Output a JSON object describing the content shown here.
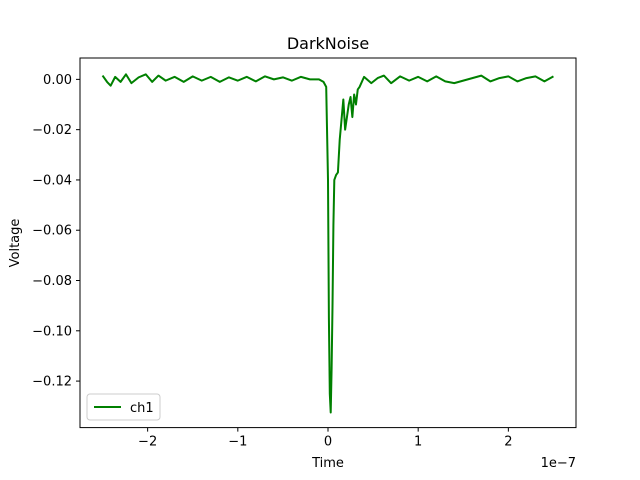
{
  "chart_data": {
    "type": "line",
    "title": "DarkNoise",
    "xlabel": "Time",
    "ylabel": "Voltage",
    "x_offset_label": "1e−7",
    "xlim": [
      -2.75,
      2.75
    ],
    "ylim": [
      -0.1385,
      0.0085
    ],
    "x_ticks": [
      {
        "value": -2,
        "label": "−2"
      },
      {
        "value": -1,
        "label": "−1"
      },
      {
        "value": 0,
        "label": "0"
      },
      {
        "value": 1,
        "label": "1"
      },
      {
        "value": 2,
        "label": "2"
      }
    ],
    "y_ticks": [
      {
        "value": 0.0,
        "label": "0.00"
      },
      {
        "value": -0.02,
        "label": "−0.02"
      },
      {
        "value": -0.04,
        "label": "−0.04"
      },
      {
        "value": -0.06,
        "label": "−0.06"
      },
      {
        "value": -0.08,
        "label": "−0.08"
      },
      {
        "value": -0.1,
        "label": "−0.10"
      },
      {
        "value": -0.12,
        "label": "−0.12"
      }
    ],
    "grid": false,
    "legend_position": "lower-left",
    "series": [
      {
        "name": "ch1",
        "color": "#008000",
        "x": [
          -2.5,
          -2.45,
          -2.41,
          -2.36,
          -2.3,
          -2.24,
          -2.18,
          -2.1,
          -2.02,
          -1.95,
          -1.88,
          -1.8,
          -1.7,
          -1.6,
          -1.5,
          -1.4,
          -1.3,
          -1.2,
          -1.1,
          -1.0,
          -0.9,
          -0.8,
          -0.7,
          -0.6,
          -0.5,
          -0.4,
          -0.3,
          -0.2,
          -0.1,
          -0.05,
          -0.02,
          0.0,
          0.01,
          0.02,
          0.03,
          0.04,
          0.05,
          0.06,
          0.07,
          0.09,
          0.11,
          0.13,
          0.15,
          0.17,
          0.19,
          0.21,
          0.23,
          0.25,
          0.27,
          0.29,
          0.31,
          0.33,
          0.35,
          0.4,
          0.48,
          0.55,
          0.62,
          0.7,
          0.8,
          0.9,
          1.0,
          1.1,
          1.2,
          1.3,
          1.4,
          1.5,
          1.6,
          1.7,
          1.8,
          1.9,
          2.0,
          2.1,
          2.2,
          2.3,
          2.4,
          2.5
        ],
        "y": [
          0.0015,
          -0.001,
          -0.0025,
          0.001,
          -0.001,
          0.002,
          -0.0015,
          0.0008,
          0.002,
          -0.001,
          0.0015,
          -0.0005,
          0.001,
          -0.001,
          0.0012,
          -0.0005,
          0.001,
          -0.001,
          0.0008,
          -0.0005,
          0.001,
          -0.0008,
          0.0012,
          0.0,
          0.0008,
          -0.0005,
          0.001,
          0.0,
          0.0,
          -0.001,
          -0.003,
          -0.04,
          -0.095,
          -0.125,
          -0.1325,
          -0.115,
          -0.09,
          -0.058,
          -0.04,
          -0.038,
          -0.037,
          -0.024,
          -0.016,
          -0.008,
          -0.02,
          -0.015,
          -0.01,
          -0.007,
          -0.015,
          -0.006,
          -0.01,
          -0.004,
          -0.003,
          0.001,
          -0.0015,
          0.0005,
          0.0015,
          -0.0015,
          0.0012,
          -0.0005,
          0.001,
          -0.0008,
          0.0012,
          -0.0008,
          -0.0015,
          -0.0005,
          0.0005,
          0.0015,
          -0.0008,
          0.0005,
          0.0012,
          -0.0008,
          0.0005,
          0.0012,
          -0.0008,
          0.0012
        ]
      }
    ]
  }
}
